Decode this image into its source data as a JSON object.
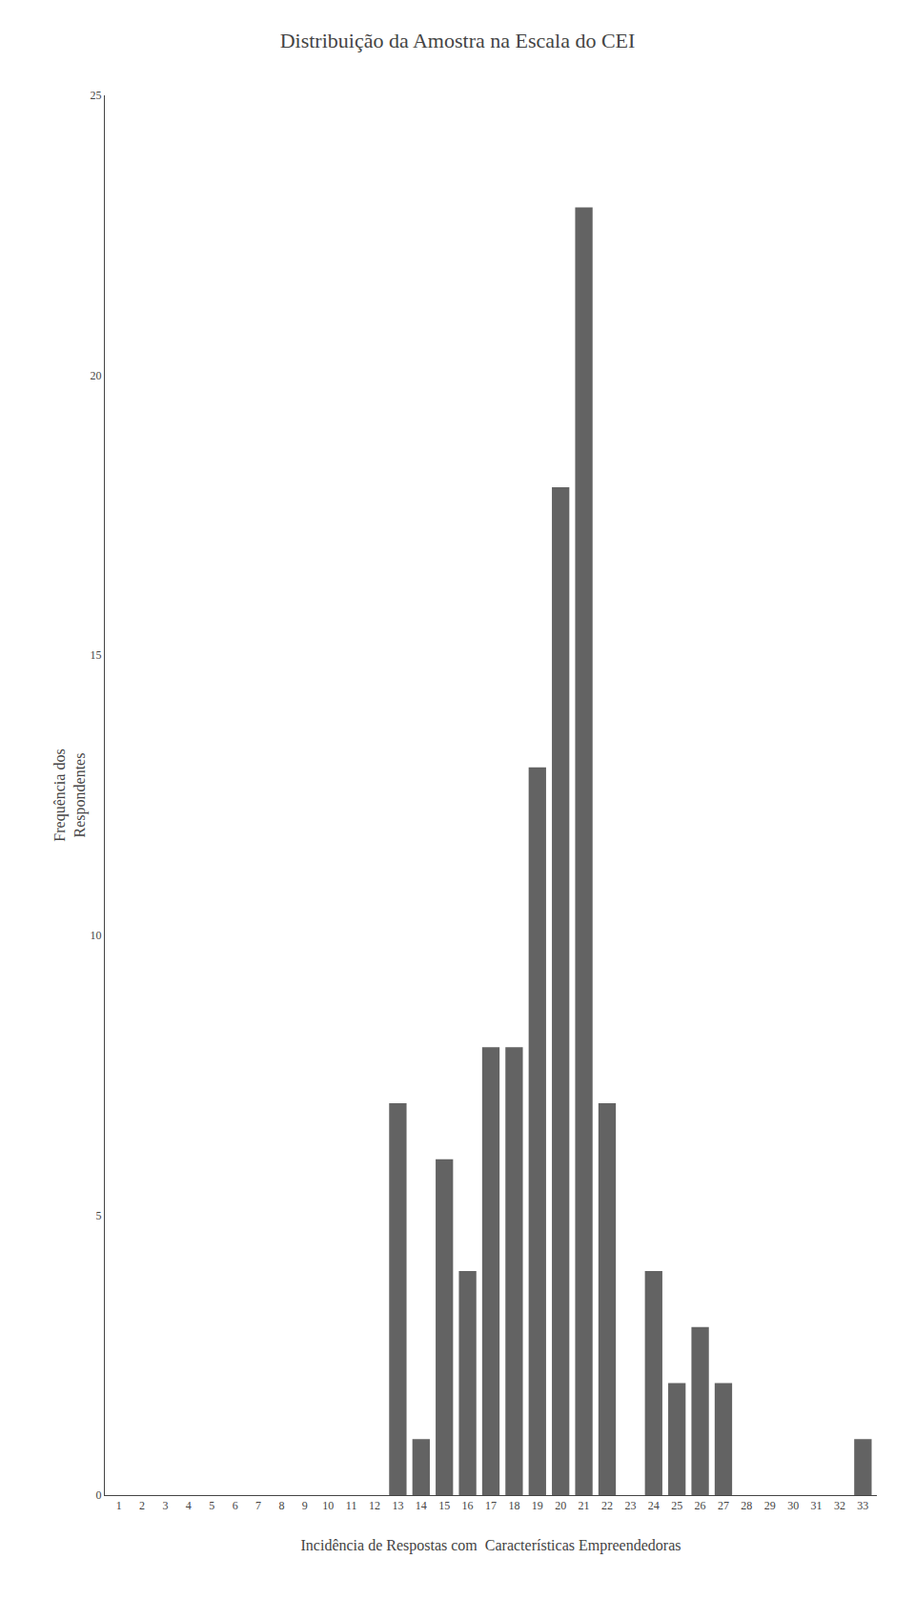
{
  "chart_data": {
    "type": "bar",
    "title": "Distribuição da Amostra na Escala do CEI",
    "xlabel": "Incidência de Respostas com  Características Empreendedoras",
    "ylabel": "Frequência dos\nRespondentes",
    "categories": [
      1,
      2,
      3,
      4,
      5,
      6,
      7,
      8,
      9,
      10,
      11,
      12,
      13,
      14,
      15,
      16,
      17,
      18,
      19,
      20,
      21,
      22,
      23,
      24,
      25,
      26,
      27,
      28,
      29,
      30,
      31,
      32,
      33
    ],
    "values": [
      0,
      0,
      0,
      0,
      0,
      0,
      0,
      0,
      0,
      0,
      0,
      0,
      7,
      1,
      6,
      4,
      8,
      8,
      13,
      18,
      23,
      7,
      0,
      4,
      2,
      3,
      2,
      0,
      0,
      0,
      0,
      0,
      1
    ],
    "color": "#636363",
    "ylim": [
      0,
      25
    ],
    "yticks": [
      0,
      5,
      10,
      15,
      20,
      25
    ],
    "grid": false
  }
}
